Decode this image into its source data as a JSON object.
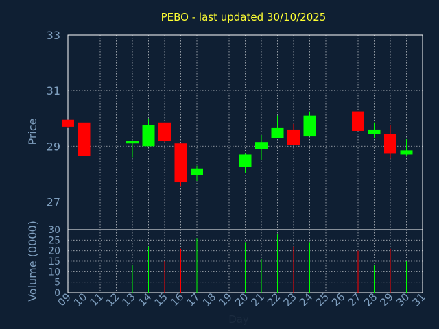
{
  "chart_data": {
    "type": "candlestick",
    "title": "PEBO - last updated 30/10/2025",
    "ylabel": "Price",
    "volume_ylabel": "Volume (0000)",
    "xlabel": "Day",
    "ylim": [
      26,
      33
    ],
    "yticks": [
      27,
      29,
      31,
      33
    ],
    "volume_ylim": [
      0,
      30
    ],
    "volume_yticks": [
      0,
      5,
      10,
      15,
      20,
      25,
      30
    ],
    "x_ticks": [
      "09",
      "10",
      "11",
      "12",
      "13",
      "14",
      "15",
      "16",
      "17",
      "18",
      "19",
      "20",
      "21",
      "22",
      "23",
      "24",
      "25",
      "26",
      "27",
      "28",
      "29",
      "30",
      "31"
    ],
    "grid": true,
    "colors": {
      "up": "#00ff00",
      "down": "#ff0000",
      "background": "#0f1f33",
      "title": "#ffff33",
      "axis_text": "#7f9fbf",
      "grid": "#ffffff"
    },
    "candles": [
      {
        "day": "09",
        "open": 29.95,
        "high": 29.95,
        "low": 29.65,
        "close": 29.7,
        "volume": 0
      },
      {
        "day": "10",
        "open": 29.85,
        "high": 30.15,
        "low": 28.6,
        "close": 28.65,
        "volume": 23
      },
      {
        "day": "13",
        "open": 29.1,
        "high": 29.2,
        "low": 28.6,
        "close": 29.2,
        "volume": 13
      },
      {
        "day": "14",
        "open": 29.0,
        "high": 30.0,
        "low": 29.0,
        "close": 29.75,
        "volume": 22
      },
      {
        "day": "15",
        "open": 29.85,
        "high": 29.85,
        "low": 29.15,
        "close": 29.2,
        "volume": 15
      },
      {
        "day": "16",
        "open": 29.1,
        "high": 29.1,
        "low": 27.55,
        "close": 27.7,
        "volume": 21
      },
      {
        "day": "17",
        "open": 27.95,
        "high": 28.3,
        "low": 27.75,
        "close": 28.2,
        "volume": 26
      },
      {
        "day": "20",
        "open": 28.25,
        "high": 28.75,
        "low": 28.05,
        "close": 28.7,
        "volume": 24
      },
      {
        "day": "21",
        "open": 28.9,
        "high": 29.4,
        "low": 28.5,
        "close": 29.15,
        "volume": 16
      },
      {
        "day": "22",
        "open": 29.3,
        "high": 30.1,
        "low": 29.3,
        "close": 29.65,
        "volume": 28
      },
      {
        "day": "23",
        "open": 29.6,
        "high": 29.8,
        "low": 29.05,
        "close": 29.05,
        "volume": 22
      },
      {
        "day": "24",
        "open": 29.35,
        "high": 30.25,
        "low": 29.35,
        "close": 30.1,
        "volume": 24
      },
      {
        "day": "27",
        "open": 30.25,
        "high": 30.25,
        "low": 29.55,
        "close": 29.55,
        "volume": 20
      },
      {
        "day": "28",
        "open": 29.45,
        "high": 29.85,
        "low": 29.3,
        "close": 29.6,
        "volume": 13
      },
      {
        "day": "29",
        "open": 29.45,
        "high": 29.75,
        "low": 28.55,
        "close": 28.75,
        "volume": 21
      },
      {
        "day": "30",
        "open": 28.7,
        "high": 29.25,
        "low": 28.65,
        "close": 28.85,
        "volume": 15
      }
    ]
  }
}
